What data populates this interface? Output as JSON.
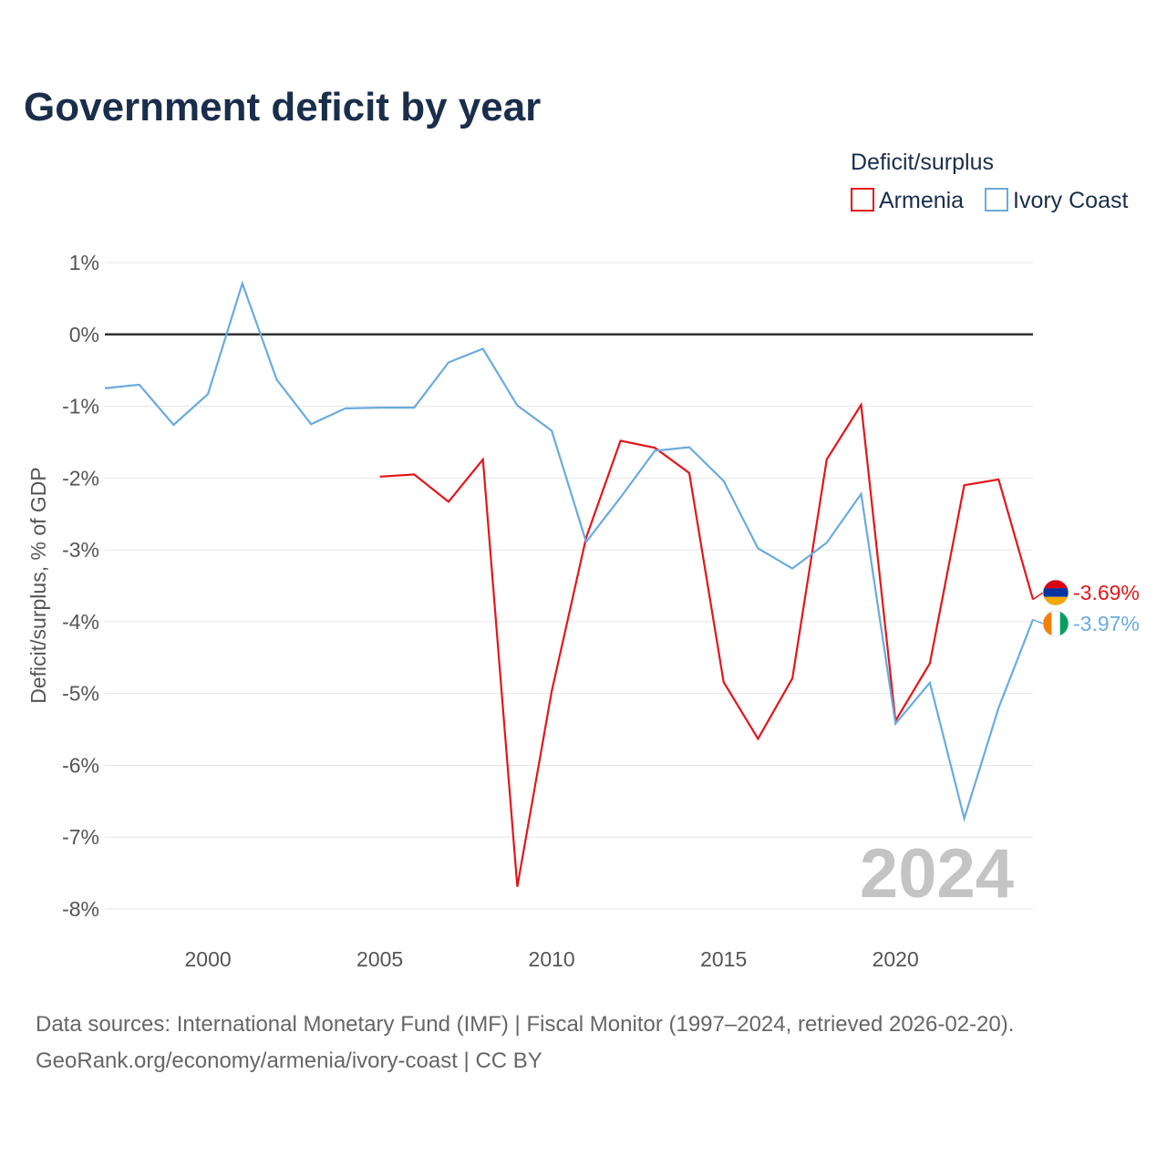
{
  "chart_data": {
    "type": "line",
    "title": "Government deficit by year",
    "legend_title": "Deficit/surplus",
    "legend_position": "top-right",
    "ylabel": "Deficit/surplus, % of GDP",
    "xlabel": "",
    "xlim": [
      1997,
      2024
    ],
    "ylim": [
      -8,
      1
    ],
    "y_ticks": [
      1,
      0,
      -1,
      -2,
      -3,
      -4,
      -5,
      -6,
      -7,
      -8
    ],
    "y_tick_labels": [
      "1%",
      "0%",
      "-1%",
      "-2%",
      "-3%",
      "-4%",
      "-5%",
      "-6%",
      "-7%",
      "-8%"
    ],
    "x_ticks": [
      2000,
      2005,
      2010,
      2015,
      2020
    ],
    "x_tick_labels": [
      "2000",
      "2005",
      "2010",
      "2015",
      "2020"
    ],
    "grid": true,
    "year_watermark": "2024",
    "series": [
      {
        "name": "Armenia",
        "color": "#e3161b",
        "end_label": "-3.69%",
        "flag": "armenia",
        "x": [
          2005,
          2006,
          2007,
          2008,
          2009,
          2010,
          2011,
          2012,
          2013,
          2014,
          2015,
          2016,
          2017,
          2018,
          2019,
          2020,
          2021,
          2022,
          2023,
          2024
        ],
        "values": [
          -1.98,
          -1.95,
          -2.33,
          -1.74,
          -7.69,
          -4.97,
          -2.83,
          -1.48,
          -1.58,
          -1.93,
          -4.84,
          -5.63,
          -4.79,
          -1.74,
          -0.98,
          -5.38,
          -4.58,
          -2.1,
          -2.02,
          -3.69
        ]
      },
      {
        "name": "Ivory Coast",
        "color": "#6aabdf",
        "end_label": "-3.97%",
        "flag": "ivory-coast",
        "x": [
          1997,
          1998,
          1999,
          2000,
          2001,
          2002,
          2003,
          2004,
          2005,
          2006,
          2007,
          2008,
          2009,
          2010,
          2011,
          2012,
          2013,
          2014,
          2015,
          2016,
          2017,
          2018,
          2019,
          2020,
          2021,
          2022,
          2023,
          2024
        ],
        "values": [
          -0.75,
          -0.7,
          -1.26,
          -0.83,
          0.71,
          -0.63,
          -1.25,
          -1.03,
          -1.02,
          -1.02,
          -0.39,
          -0.2,
          -0.99,
          -1.34,
          -2.89,
          -2.27,
          -1.62,
          -1.57,
          -2.04,
          -2.98,
          -3.26,
          -2.9,
          -2.22,
          -5.42,
          -4.85,
          -6.74,
          -5.2,
          -3.97
        ]
      }
    ],
    "source_line_1": "Data sources: International Monetary Fund (IMF) | Fiscal Monitor (1997–2024, retrieved 2026-02-20).",
    "source_line_2": "GeoRank.org/economy/armenia/ivory-coast | CC BY"
  }
}
